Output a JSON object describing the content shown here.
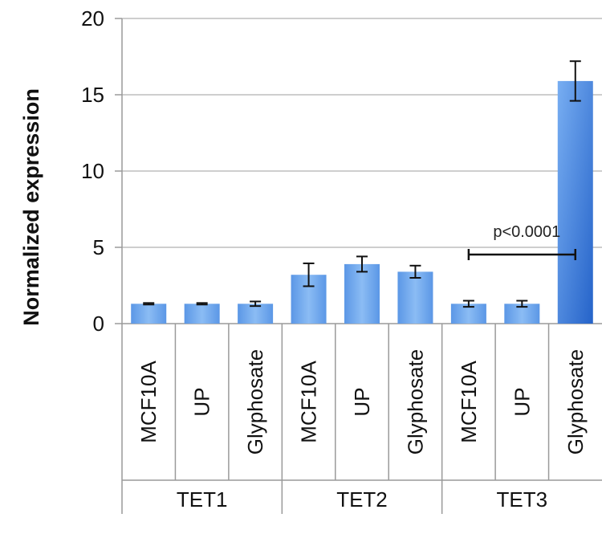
{
  "chart_data": {
    "type": "bar",
    "title": "",
    "xlabel": "",
    "ylabel": "Normalized expression",
    "ylim": [
      0,
      20
    ],
    "yticks": [
      0,
      5,
      10,
      15,
      20
    ],
    "grid": true,
    "legend": "none",
    "groups": [
      {
        "name": "TET1",
        "categories": [
          "MCF10A",
          "UP",
          "Glyphosate"
        ]
      },
      {
        "name": "TET2",
        "categories": [
          "MCF10A",
          "UP",
          "Glyphosate"
        ]
      },
      {
        "name": "TET3",
        "categories": [
          "MCF10A",
          "UP",
          "Glyphosate"
        ]
      }
    ],
    "values": [
      1.3,
      1.3,
      1.3,
      3.2,
      3.9,
      3.4,
      1.3,
      1.3,
      15.9
    ],
    "errors": [
      0.05,
      0.05,
      0.15,
      0.75,
      0.5,
      0.4,
      0.2,
      0.2,
      1.3
    ],
    "bar_colors": {
      "default": "#6aa4ec",
      "highlight": "#2f6fd0"
    },
    "highlight_index": 8,
    "annotation": {
      "text": "p<0.0001",
      "from_index": 6,
      "to_index": 8,
      "y": 4.0
    }
  }
}
